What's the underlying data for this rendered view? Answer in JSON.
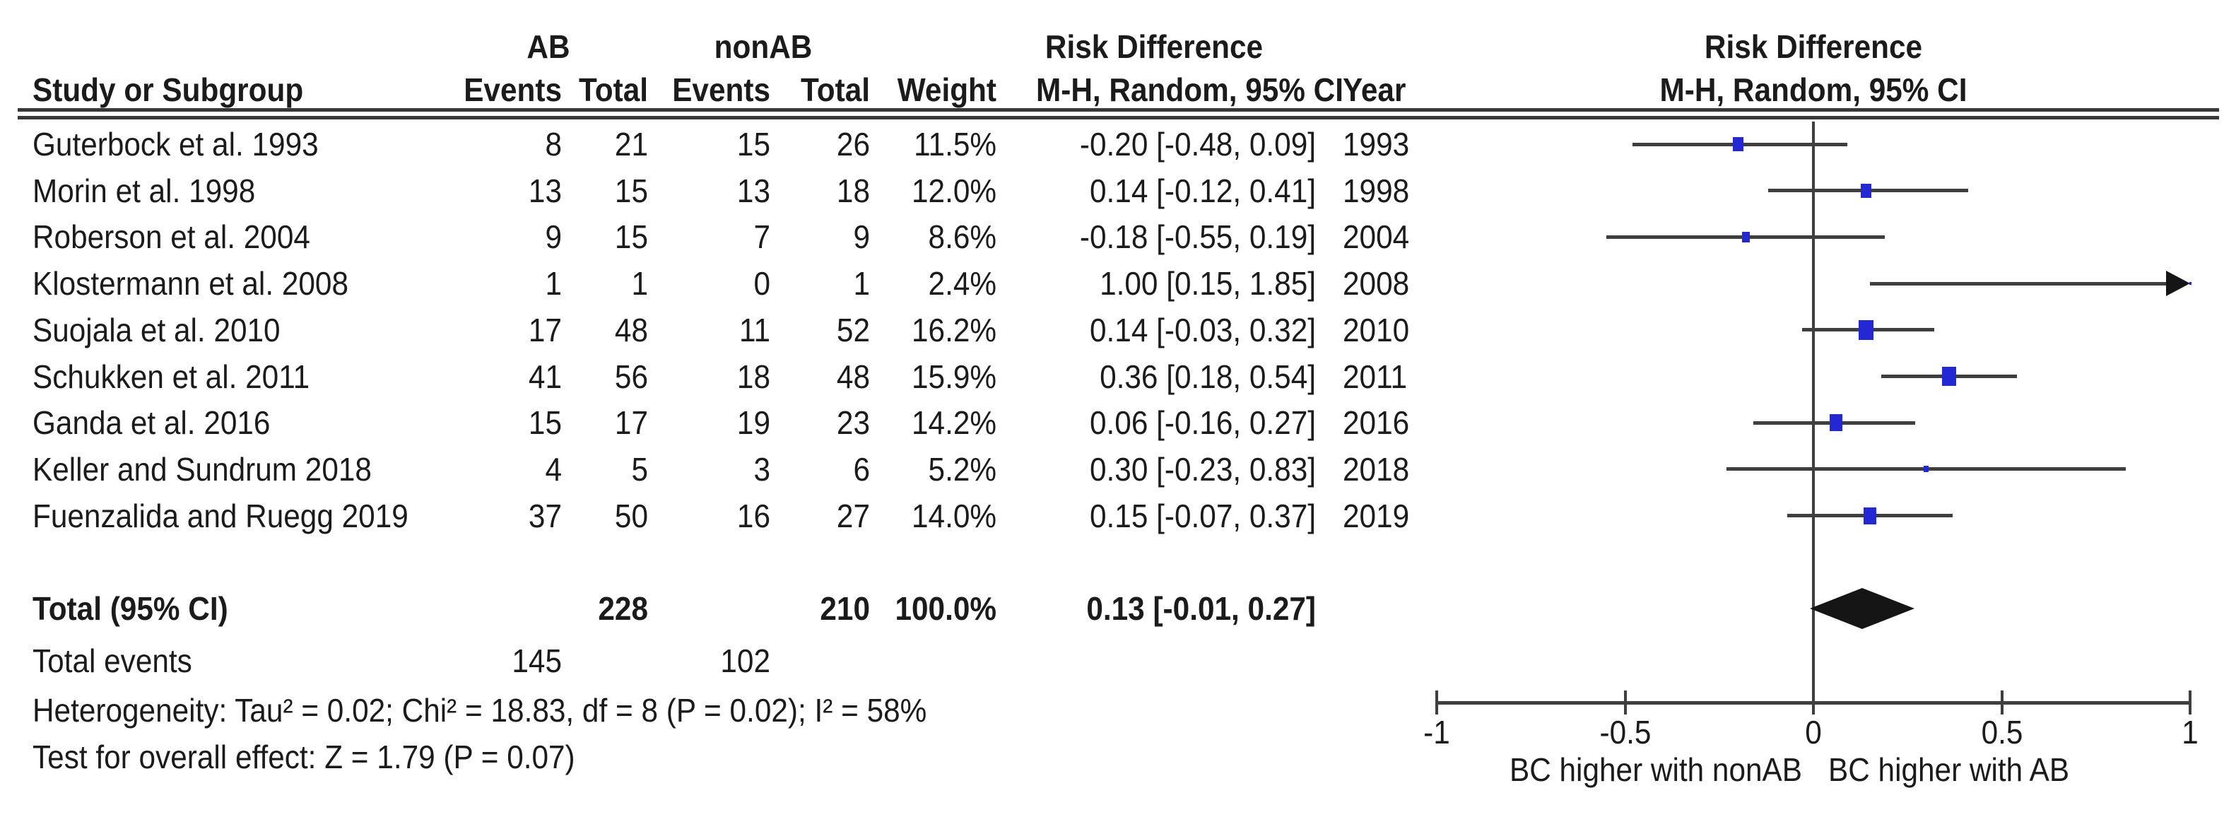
{
  "table": {
    "group_ab": "AB",
    "group_nonab": "nonAB",
    "rd_title": "Risk Difference",
    "rd_method": "M-H, Random, 95% CI",
    "col_study": "Study or Subgroup",
    "col_events": "Events",
    "col_total": "Total",
    "col_weight": "Weight",
    "col_year": "Year"
  },
  "colors": {
    "square_blue": "#2428d2",
    "ci_line_gray": "#3f3f3f",
    "diamond_black": "#151515",
    "text_black": "#1b1b1b"
  },
  "chart_data": {
    "type": "forest",
    "effect_measure": "Risk Difference",
    "method": "M-H, Random, 95% CI",
    "xlim": [
      -1,
      1
    ],
    "x_ticks": [
      -1,
      -0.5,
      0,
      0.5,
      1
    ],
    "x_tick_labels": [
      "-1",
      "-0.5",
      "0",
      "0.5",
      "1"
    ],
    "axis_left_label": "BC higher with nonAB",
    "axis_right_label": "BC higher with AB",
    "studies": [
      {
        "name": "Guterbock et al. 1993",
        "ab_events": 8,
        "ab_total": 21,
        "nonab_events": 15,
        "nonab_total": 26,
        "weight": "11.5%",
        "weight_pct": 11.5,
        "estimate": -0.2,
        "ci_low": -0.48,
        "ci_high": 0.09,
        "ci_text": "-0.20 [-0.48, 0.09]",
        "year": 1993
      },
      {
        "name": "Morin et al. 1998",
        "ab_events": 13,
        "ab_total": 15,
        "nonab_events": 13,
        "nonab_total": 18,
        "weight": "12.0%",
        "weight_pct": 12.0,
        "estimate": 0.14,
        "ci_low": -0.12,
        "ci_high": 0.41,
        "ci_text": "0.14 [-0.12, 0.41]",
        "year": 1998
      },
      {
        "name": "Roberson et al. 2004",
        "ab_events": 9,
        "ab_total": 15,
        "nonab_events": 7,
        "nonab_total": 9,
        "weight": "8.6%",
        "weight_pct": 8.6,
        "estimate": -0.18,
        "ci_low": -0.55,
        "ci_high": 0.19,
        "ci_text": "-0.18 [-0.55, 0.19]",
        "year": 2004
      },
      {
        "name": "Klostermann et al. 2008",
        "ab_events": 1,
        "ab_total": 1,
        "nonab_events": 0,
        "nonab_total": 1,
        "weight": "2.4%",
        "weight_pct": 2.4,
        "estimate": 1.0,
        "ci_low": 0.15,
        "ci_high": 1.85,
        "ci_text": "1.00 [0.15, 1.85]",
        "year": 2008
      },
      {
        "name": "Suojala et al. 2010",
        "ab_events": 17,
        "ab_total": 48,
        "nonab_events": 11,
        "nonab_total": 52,
        "weight": "16.2%",
        "weight_pct": 16.2,
        "estimate": 0.14,
        "ci_low": -0.03,
        "ci_high": 0.32,
        "ci_text": "0.14 [-0.03, 0.32]",
        "year": 2010
      },
      {
        "name": "Schukken et al. 2011",
        "ab_events": 41,
        "ab_total": 56,
        "nonab_events": 18,
        "nonab_total": 48,
        "weight": "15.9%",
        "weight_pct": 15.9,
        "estimate": 0.36,
        "ci_low": 0.18,
        "ci_high": 0.54,
        "ci_text": "0.36 [0.18, 0.54]",
        "year": 2011
      },
      {
        "name": "Ganda et al. 2016",
        "ab_events": 15,
        "ab_total": 17,
        "nonab_events": 19,
        "nonab_total": 23,
        "weight": "14.2%",
        "weight_pct": 14.2,
        "estimate": 0.06,
        "ci_low": -0.16,
        "ci_high": 0.27,
        "ci_text": "0.06 [-0.16, 0.27]",
        "year": 2016
      },
      {
        "name": "Keller and Sundrum 2018",
        "ab_events": 4,
        "ab_total": 5,
        "nonab_events": 3,
        "nonab_total": 6,
        "weight": "5.2%",
        "weight_pct": 5.2,
        "estimate": 0.3,
        "ci_low": -0.23,
        "ci_high": 0.83,
        "ci_text": "0.30 [-0.23, 0.83]",
        "year": 2018
      },
      {
        "name": "Fuenzalida and Ruegg 2019",
        "ab_events": 37,
        "ab_total": 50,
        "nonab_events": 16,
        "nonab_total": 27,
        "weight": "14.0%",
        "weight_pct": 14.0,
        "estimate": 0.15,
        "ci_low": -0.07,
        "ci_high": 0.37,
        "ci_text": "0.15 [-0.07, 0.37]",
        "year": 2019
      }
    ],
    "total": {
      "label": "Total (95% CI)",
      "ab_total": 228,
      "nonab_total": 210,
      "weight": "100.0%",
      "estimate": 0.13,
      "ci_low": -0.01,
      "ci_high": 0.27,
      "ci_text": "0.13 [-0.01, 0.27]"
    },
    "total_events": {
      "label": "Total events",
      "ab": 145,
      "nonab": 102
    },
    "heterogeneity": "Heterogeneity: Tau² = 0.02; Chi² = 18.83, df = 8 (P = 0.02); I² = 58%",
    "overall_effect": "Test for overall effect: Z = 1.79 (P = 0.07)"
  }
}
